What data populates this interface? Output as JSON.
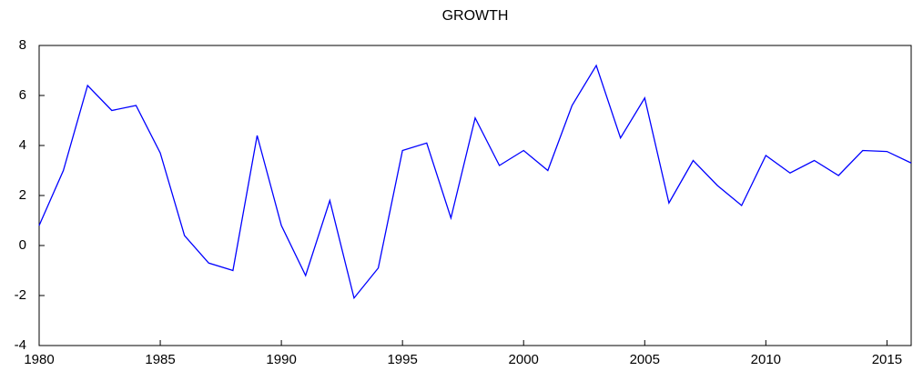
{
  "chart_data": {
    "type": "line",
    "title": "GROWTH",
    "x": [
      1980,
      1981,
      1982,
      1983,
      1984,
      1985,
      1986,
      1987,
      1988,
      1989,
      1990,
      1991,
      1992,
      1993,
      1994,
      1995,
      1996,
      1997,
      1998,
      1999,
      2000,
      2001,
      2002,
      2003,
      2004,
      2005,
      2006,
      2007,
      2008,
      2009,
      2010,
      2011,
      2012,
      2013,
      2014,
      2015,
      2016
    ],
    "series": [
      {
        "name": "GROWTH",
        "color": "#0000ff",
        "values": [
          0.8,
          3.0,
          6.4,
          5.4,
          5.6,
          3.7,
          0.4,
          -0.7,
          -1.0,
          4.4,
          0.8,
          -1.2,
          1.8,
          -2.1,
          -0.9,
          3.8,
          4.1,
          1.1,
          5.1,
          3.2,
          3.8,
          3.0,
          5.6,
          7.2,
          4.3,
          5.9,
          1.7,
          3.4,
          2.4,
          1.6,
          3.6,
          2.9,
          3.4,
          2.8,
          3.8,
          3.76,
          3.3
        ]
      }
    ],
    "xlim": [
      1980,
      2016
    ],
    "xticks": [
      1980,
      1985,
      1990,
      1995,
      2000,
      2005,
      2010,
      2015
    ],
    "ylim": [
      -4,
      8
    ],
    "yticks": [
      -4,
      -2,
      0,
      2,
      4,
      6,
      8
    ]
  }
}
